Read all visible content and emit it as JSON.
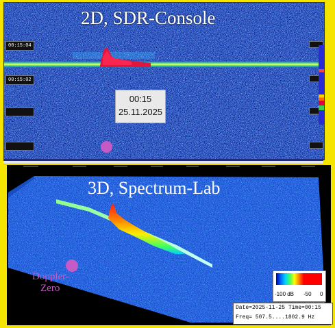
{
  "top_panel": {
    "title": "2D, SDR-Console",
    "timestamps_left": [
      "00:15:04",
      "00:15:02"
    ],
    "info_box": {
      "time": "00:15",
      "date": "25.11.2025"
    }
  },
  "bottom_panel": {
    "title": "3D, Spectrum-Lab",
    "marker_label_line1": "Doppler-",
    "marker_label_line2": "Zero",
    "legend": {
      "label_left": "-100 dB",
      "label_mid": "-50",
      "label_right": "0"
    },
    "status": {
      "line1": "Date=2025-11-25 Time=00:15",
      "line2": "Freq= 507.5....1802.9 Hz"
    }
  },
  "colors": {
    "frame": "#f5e400",
    "noise_blue": "#1e45c8",
    "signal_green": "#3ad14a",
    "signal_red": "#e0163e",
    "marker": "#c55bc6"
  }
}
